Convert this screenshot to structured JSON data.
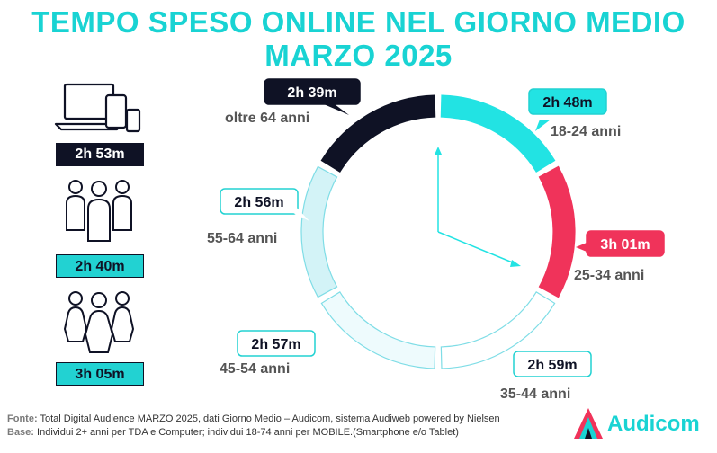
{
  "title": {
    "line1": "TEMPO SPESO ONLINE NEL GIORNO MEDIO",
    "line2": "MARZO 2025"
  },
  "devices": [
    {
      "icon": "laptop-tablet-phone-icon",
      "value": "2h 53m",
      "style": "dark"
    },
    {
      "icon": "men-group-icon",
      "value": "2h 40m",
      "style": "light"
    },
    {
      "icon": "women-group-icon",
      "value": "3h 05m",
      "style": "light"
    }
  ],
  "chart_data": {
    "type": "donut",
    "segments": [
      {
        "label": "18-24 anni",
        "value": "2h 48m",
        "minutes": 168,
        "color": "#22e3e3",
        "label_color": "#0f1225"
      },
      {
        "label": "25-34 anni",
        "value": "3h 01m",
        "minutes": 181,
        "color": "#f0335a",
        "label_color": "#ffffff"
      },
      {
        "label": "35-44 anni",
        "value": "2h 59m",
        "minutes": 179,
        "color": "#ffffff",
        "label_color": "#0f1225"
      },
      {
        "label": "45-54 anni",
        "value": "2h 57m",
        "minutes": 177,
        "color": "#eefbfd",
        "label_color": "#0f1225"
      },
      {
        "label": "55-64 anni",
        "value": "2h 56m",
        "minutes": 176,
        "color": "#d3f3f7",
        "label_color": "#0f1225"
      },
      {
        "label": "oltre 64 anni",
        "value": "2h 39m",
        "minutes": 159,
        "color": "#0f1225",
        "label_color": "#ffffff"
      }
    ]
  },
  "footer": {
    "fonte_label": "Fonte:",
    "fonte_text": "Total Digital Audience MARZO 2025, dati Giorno Medio – Audicom, sistema Audiweb powered by Nielsen",
    "base_label": "Base:",
    "base_text": "Individui 2+ anni per TDA e Computer; individui 18-74 anni per MOBILE.(Smartphone e/o Tablet)"
  },
  "logo": {
    "text": "Audicom",
    "icon": "audicom-logo-icon"
  },
  "colors": {
    "accent": "#19d3d3",
    "dark": "#0f1225",
    "red": "#f0335a"
  }
}
